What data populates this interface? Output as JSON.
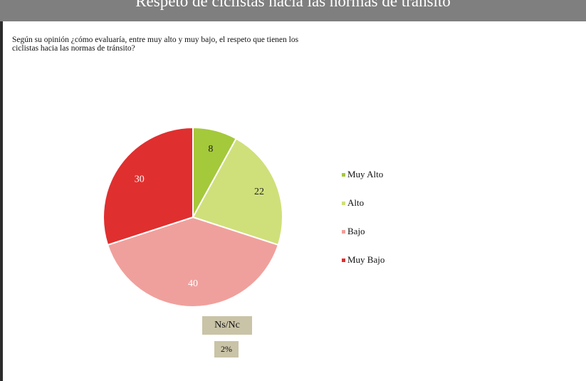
{
  "header": {
    "title": "Respeto de ciclistas hacia las normas de tránsito"
  },
  "question": "Según su opinión ¿cómo evaluaría, entre muy alto y muy bajo, el respeto que tienen los ciclistas hacia las normas de tránsito?",
  "chart_data": {
    "type": "pie",
    "title": "Respeto de ciclistas hacia las normas de tránsito",
    "categories": [
      "Muy Alto",
      "Alto",
      "Bajo",
      "Muy Bajo"
    ],
    "values": [
      8,
      22,
      40,
      30
    ],
    "colors": [
      "#a4c93b",
      "#cfe07a",
      "#f0a09c",
      "#e02f2f"
    ],
    "label_colors": [
      "#222222",
      "#222222",
      "#ffffff",
      "#ffffff"
    ],
    "legend_position": "right"
  },
  "nsnc": {
    "label": "Ns/Nc",
    "value": "2%"
  }
}
